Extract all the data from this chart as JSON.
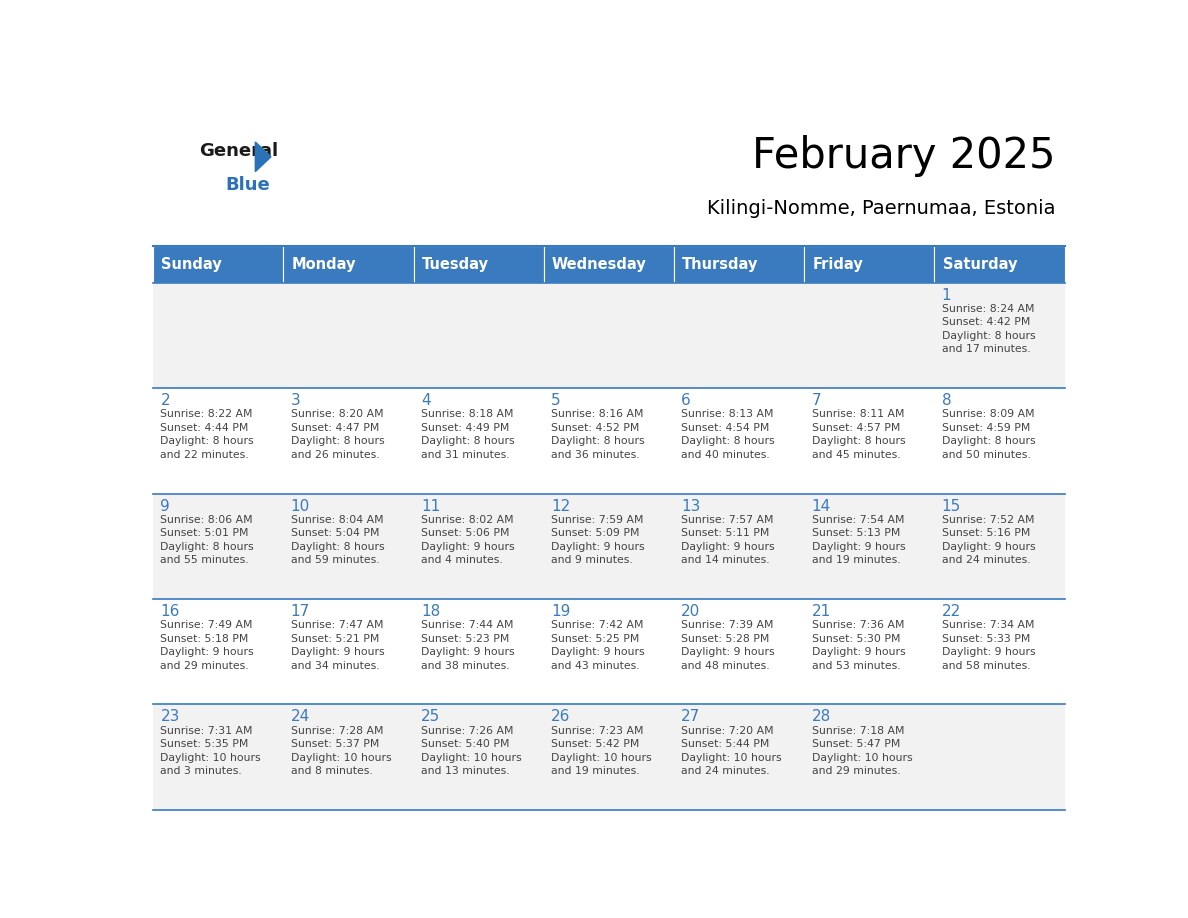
{
  "title": "February 2025",
  "subtitle": "Kilingi-Nomme, Paernumaa, Estonia",
  "header_color": "#3a7abf",
  "header_text_color": "#ffffff",
  "day_names": [
    "Sunday",
    "Monday",
    "Tuesday",
    "Wednesday",
    "Thursday",
    "Friday",
    "Saturday"
  ],
  "grid_line_color": "#3a7abf",
  "cell_bg_odd": "#f2f2f2",
  "cell_bg_even": "#ffffff",
  "day_num_color": "#3a7abf",
  "text_color": "#444444",
  "weeks": [
    [
      null,
      null,
      null,
      null,
      null,
      null,
      {
        "day": 1,
        "sunrise": "8:24 AM",
        "sunset": "4:42 PM",
        "daylight": "8 hours",
        "daylight2": "and 17 minutes."
      }
    ],
    [
      {
        "day": 2,
        "sunrise": "8:22 AM",
        "sunset": "4:44 PM",
        "daylight": "8 hours",
        "daylight2": "and 22 minutes."
      },
      {
        "day": 3,
        "sunrise": "8:20 AM",
        "sunset": "4:47 PM",
        "daylight": "8 hours",
        "daylight2": "and 26 minutes."
      },
      {
        "day": 4,
        "sunrise": "8:18 AM",
        "sunset": "4:49 PM",
        "daylight": "8 hours",
        "daylight2": "and 31 minutes."
      },
      {
        "day": 5,
        "sunrise": "8:16 AM",
        "sunset": "4:52 PM",
        "daylight": "8 hours",
        "daylight2": "and 36 minutes."
      },
      {
        "day": 6,
        "sunrise": "8:13 AM",
        "sunset": "4:54 PM",
        "daylight": "8 hours",
        "daylight2": "and 40 minutes."
      },
      {
        "day": 7,
        "sunrise": "8:11 AM",
        "sunset": "4:57 PM",
        "daylight": "8 hours",
        "daylight2": "and 45 minutes."
      },
      {
        "day": 8,
        "sunrise": "8:09 AM",
        "sunset": "4:59 PM",
        "daylight": "8 hours",
        "daylight2": "and 50 minutes."
      }
    ],
    [
      {
        "day": 9,
        "sunrise": "8:06 AM",
        "sunset": "5:01 PM",
        "daylight": "8 hours",
        "daylight2": "and 55 minutes."
      },
      {
        "day": 10,
        "sunrise": "8:04 AM",
        "sunset": "5:04 PM",
        "daylight": "8 hours",
        "daylight2": "and 59 minutes."
      },
      {
        "day": 11,
        "sunrise": "8:02 AM",
        "sunset": "5:06 PM",
        "daylight": "9 hours",
        "daylight2": "and 4 minutes."
      },
      {
        "day": 12,
        "sunrise": "7:59 AM",
        "sunset": "5:09 PM",
        "daylight": "9 hours",
        "daylight2": "and 9 minutes."
      },
      {
        "day": 13,
        "sunrise": "7:57 AM",
        "sunset": "5:11 PM",
        "daylight": "9 hours",
        "daylight2": "and 14 minutes."
      },
      {
        "day": 14,
        "sunrise": "7:54 AM",
        "sunset": "5:13 PM",
        "daylight": "9 hours",
        "daylight2": "and 19 minutes."
      },
      {
        "day": 15,
        "sunrise": "7:52 AM",
        "sunset": "5:16 PM",
        "daylight": "9 hours",
        "daylight2": "and 24 minutes."
      }
    ],
    [
      {
        "day": 16,
        "sunrise": "7:49 AM",
        "sunset": "5:18 PM",
        "daylight": "9 hours",
        "daylight2": "and 29 minutes."
      },
      {
        "day": 17,
        "sunrise": "7:47 AM",
        "sunset": "5:21 PM",
        "daylight": "9 hours",
        "daylight2": "and 34 minutes."
      },
      {
        "day": 18,
        "sunrise": "7:44 AM",
        "sunset": "5:23 PM",
        "daylight": "9 hours",
        "daylight2": "and 38 minutes."
      },
      {
        "day": 19,
        "sunrise": "7:42 AM",
        "sunset": "5:25 PM",
        "daylight": "9 hours",
        "daylight2": "and 43 minutes."
      },
      {
        "day": 20,
        "sunrise": "7:39 AM",
        "sunset": "5:28 PM",
        "daylight": "9 hours",
        "daylight2": "and 48 minutes."
      },
      {
        "day": 21,
        "sunrise": "7:36 AM",
        "sunset": "5:30 PM",
        "daylight": "9 hours",
        "daylight2": "and 53 minutes."
      },
      {
        "day": 22,
        "sunrise": "7:34 AM",
        "sunset": "5:33 PM",
        "daylight": "9 hours",
        "daylight2": "and 58 minutes."
      }
    ],
    [
      {
        "day": 23,
        "sunrise": "7:31 AM",
        "sunset": "5:35 PM",
        "daylight": "10 hours",
        "daylight2": "and 3 minutes."
      },
      {
        "day": 24,
        "sunrise": "7:28 AM",
        "sunset": "5:37 PM",
        "daylight": "10 hours",
        "daylight2": "and 8 minutes."
      },
      {
        "day": 25,
        "sunrise": "7:26 AM",
        "sunset": "5:40 PM",
        "daylight": "10 hours",
        "daylight2": "and 13 minutes."
      },
      {
        "day": 26,
        "sunrise": "7:23 AM",
        "sunset": "5:42 PM",
        "daylight": "10 hours",
        "daylight2": "and 19 minutes."
      },
      {
        "day": 27,
        "sunrise": "7:20 AM",
        "sunset": "5:44 PM",
        "daylight": "10 hours",
        "daylight2": "and 24 minutes."
      },
      {
        "day": 28,
        "sunrise": "7:18 AM",
        "sunset": "5:47 PM",
        "daylight": "10 hours",
        "daylight2": "and 29 minutes."
      },
      null
    ]
  ]
}
